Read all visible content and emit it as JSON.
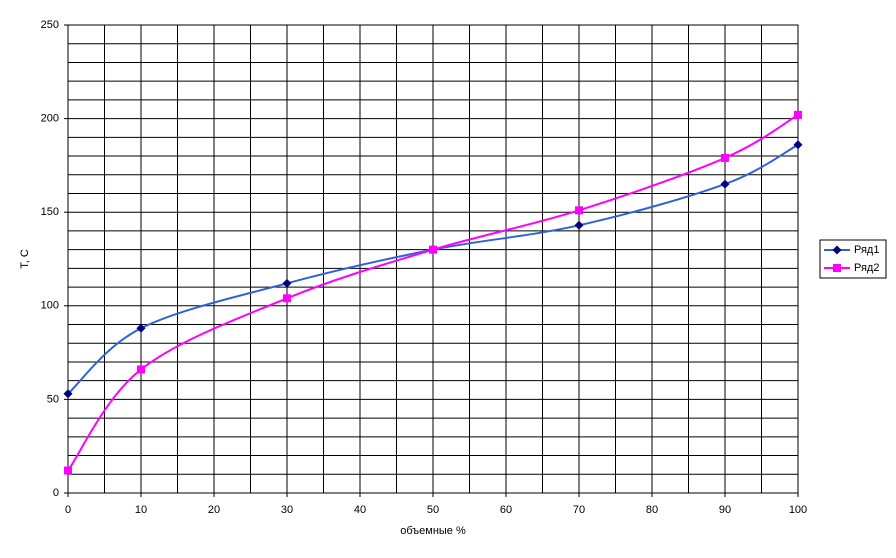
{
  "chart_data": {
    "type": "line",
    "smooth": true,
    "x_label": "объемные %",
    "y_label": "T, C",
    "x": [
      0,
      10,
      30,
      50,
      70,
      90,
      100
    ],
    "series": [
      {
        "name": "Ряд1",
        "color": "#2f62d6",
        "marker_color": "#000080",
        "marker": "diamond",
        "values": [
          53,
          88,
          112,
          130,
          143,
          165,
          186
        ]
      },
      {
        "name": "Ряд2",
        "color": "#ff00ff",
        "marker_color": "#ff00ff",
        "marker": "square",
        "values": [
          12,
          66,
          104,
          130,
          151,
          179,
          202
        ]
      }
    ],
    "xlim": [
      0,
      100
    ],
    "xticks": [
      0,
      10,
      20,
      30,
      40,
      50,
      60,
      70,
      80,
      90,
      100
    ],
    "ylim": [
      0,
      250
    ],
    "yticks": [
      0,
      50,
      100,
      150,
      200,
      250
    ],
    "grid": true,
    "xgrid_step": 5,
    "ygrid_step": 10,
    "legend": "right"
  }
}
